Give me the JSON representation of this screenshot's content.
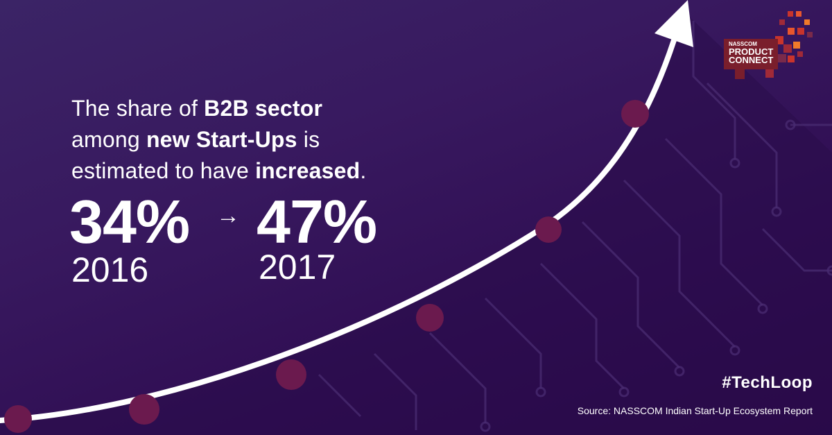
{
  "headline": {
    "line1_prefix": "The share of ",
    "line1_bold": "B2B sector",
    "line2_prefix": "among ",
    "line2_bold": "new Start-Ups",
    "line2_suffix": " is",
    "line3_prefix": "estimated to have ",
    "line3_bold": "increased",
    "line3_suffix": "."
  },
  "stats": {
    "from_value": "34%",
    "from_year": "2016",
    "arrow": "→",
    "to_value": "47%",
    "to_year": "2017"
  },
  "logo": {
    "brand": "NASSCOM",
    "line1": "PRODUCT",
    "line2": "CONNECT"
  },
  "hashtag": "#TechLoop",
  "source": "Source: NASSCOM Indian Start-Up Ecosystem Report",
  "colors": {
    "background": "#34155c",
    "curve": "#ffffff",
    "marker": "#6b1a4e",
    "logo_red": "#c8342c"
  },
  "icons": [
    "growth-arrow-icon",
    "circuit-pattern"
  ]
}
